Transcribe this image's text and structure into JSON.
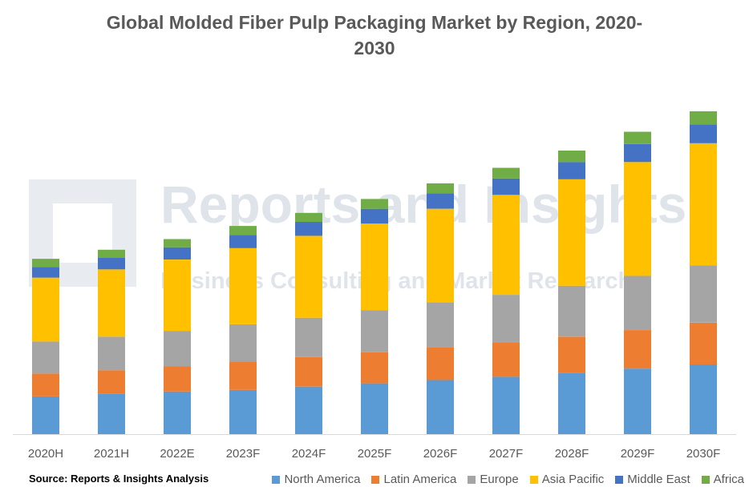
{
  "chart_data": {
    "type": "bar",
    "stacked": true,
    "title": "Global Molded Fiber Pulp Packaging Market by Region, 2020-\n2030",
    "source": "Source: Reports & Insights Analysis",
    "watermark": {
      "line1": "Reports and Insights",
      "line2": "Business Consulting and Market Research"
    },
    "categories": [
      "2020H",
      "2021H",
      "2022E",
      "2023F",
      "2024F",
      "2025F",
      "2026F",
      "2027F",
      "2028F",
      "2029F",
      "2030F"
    ],
    "grid": false,
    "y_axis_labels": false,
    "legend_position": "bottom-right",
    "series": [
      {
        "name": "North America",
        "color": "#5b9bd5",
        "values": [
          46,
          49,
          52,
          54,
          58,
          62,
          66,
          70,
          75,
          80,
          85
        ]
      },
      {
        "name": "Latin America",
        "color": "#ed7d31",
        "values": [
          28,
          29,
          31,
          34,
          36,
          38,
          40,
          42,
          44,
          47,
          51
        ]
      },
      {
        "name": "Europe",
        "color": "#a5a5a5",
        "values": [
          39,
          41,
          43,
          46,
          48,
          51,
          55,
          58,
          62,
          66,
          70
        ]
      },
      {
        "name": "Asia Pacific",
        "color": "#ffc000",
        "values": [
          78,
          82,
          87,
          93,
          100,
          106,
          114,
          122,
          130,
          139,
          149
        ]
      },
      {
        "name": "Middle East",
        "color": "#4472c4",
        "values": [
          13,
          14,
          15,
          16,
          17,
          18,
          19,
          20,
          21,
          22,
          23
        ]
      },
      {
        "name": "Africa",
        "color": "#70ad47",
        "values": [
          10,
          10,
          10,
          11,
          11,
          12,
          12,
          13,
          14,
          15,
          16
        ]
      }
    ]
  }
}
